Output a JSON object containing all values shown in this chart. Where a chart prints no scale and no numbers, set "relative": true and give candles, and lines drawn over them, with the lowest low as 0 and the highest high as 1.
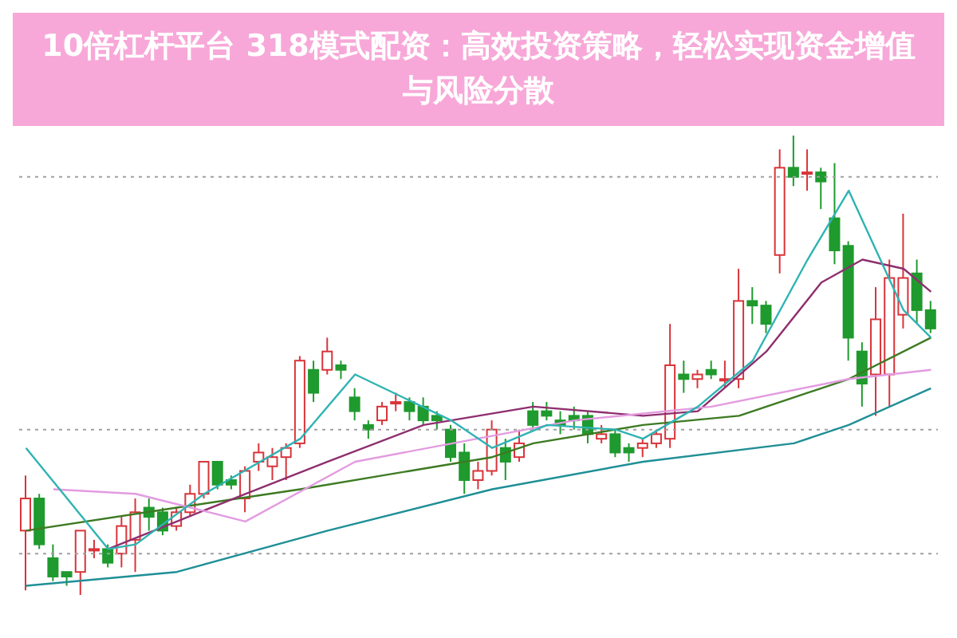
{
  "chart_data": {
    "type": "candlestick",
    "title": "10倍杠杆平台 318模式配资：高效投资策略，轻松实现资金增值与风险分散",
    "relative": true,
    "tick_labels": false,
    "categories": [
      null,
      null,
      null,
      null,
      null,
      null,
      null,
      null,
      null,
      null,
      null,
      null,
      null,
      null,
      null,
      null,
      null,
      null,
      null,
      null,
      null,
      null,
      null,
      null,
      null,
      null,
      null,
      null,
      null,
      null,
      null,
      null,
      null,
      null,
      null,
      null,
      null,
      null,
      null,
      null,
      null,
      null,
      null,
      null,
      null,
      null,
      null,
      null,
      null,
      null,
      null,
      null,
      null,
      null,
      null,
      null,
      null,
      null,
      null,
      null,
      null,
      null,
      null,
      null,
      null,
      null,
      null
    ],
    "ohlc": [
      [
        0.14,
        0.26,
        0.01,
        0.21
      ],
      [
        0.21,
        0.22,
        0.1,
        0.11
      ],
      [
        0.08,
        0.11,
        0.03,
        0.04
      ],
      [
        0.05,
        0.05,
        0.02,
        0.04
      ],
      [
        0.05,
        0.14,
        0.0,
        0.14
      ],
      [
        0.1,
        0.12,
        0.08,
        0.1
      ],
      [
        0.1,
        0.11,
        0.06,
        0.07
      ],
      [
        0.09,
        0.17,
        0.06,
        0.15
      ],
      [
        0.12,
        0.21,
        0.05,
        0.18
      ],
      [
        0.19,
        0.21,
        0.14,
        0.17
      ],
      [
        0.18,
        0.19,
        0.13,
        0.14
      ],
      [
        0.15,
        0.19,
        0.14,
        0.18
      ],
      [
        0.18,
        0.24,
        0.17,
        0.22
      ],
      [
        0.22,
        0.29,
        0.21,
        0.29
      ],
      [
        0.29,
        0.29,
        0.23,
        0.24
      ],
      [
        0.25,
        0.26,
        0.23,
        0.24
      ],
      [
        0.21,
        0.28,
        0.18,
        0.27
      ],
      [
        0.29,
        0.33,
        0.27,
        0.31
      ],
      [
        0.28,
        0.32,
        0.25,
        0.3
      ],
      [
        0.3,
        0.33,
        0.25,
        0.32
      ],
      [
        0.33,
        0.52,
        0.32,
        0.51
      ],
      [
        0.49,
        0.51,
        0.42,
        0.44
      ],
      [
        0.49,
        0.56,
        0.48,
        0.53
      ],
      [
        0.5,
        0.51,
        0.47,
        0.49
      ],
      [
        0.43,
        0.45,
        0.38,
        0.4
      ],
      [
        0.37,
        0.38,
        0.34,
        0.36
      ],
      [
        0.38,
        0.42,
        0.37,
        0.41
      ],
      [
        0.42,
        0.44,
        0.4,
        0.42
      ],
      [
        0.42,
        0.43,
        0.38,
        0.4
      ],
      [
        0.41,
        0.43,
        0.37,
        0.38
      ],
      [
        0.39,
        0.4,
        0.36,
        0.38
      ],
      [
        0.36,
        0.37,
        0.29,
        0.3
      ],
      [
        0.31,
        0.33,
        0.22,
        0.25
      ],
      [
        0.25,
        0.29,
        0.23,
        0.27
      ],
      [
        0.27,
        0.38,
        0.26,
        0.36
      ],
      [
        0.32,
        0.34,
        0.25,
        0.29
      ],
      [
        0.3,
        0.36,
        0.29,
        0.33
      ],
      [
        0.4,
        0.42,
        0.36,
        0.37
      ],
      [
        0.4,
        0.42,
        0.38,
        0.39
      ],
      [
        0.38,
        0.4,
        0.35,
        0.37
      ],
      [
        0.39,
        0.41,
        0.36,
        0.38
      ],
      [
        0.39,
        0.4,
        0.33,
        0.35
      ],
      [
        0.34,
        0.37,
        0.33,
        0.35
      ],
      [
        0.35,
        0.36,
        0.3,
        0.31
      ],
      [
        0.32,
        0.33,
        0.29,
        0.31
      ],
      [
        0.32,
        0.34,
        0.3,
        0.33
      ],
      [
        0.33,
        0.36,
        0.32,
        0.35
      ],
      [
        0.34,
        0.59,
        0.32,
        0.5
      ],
      [
        0.48,
        0.51,
        0.44,
        0.47
      ],
      [
        0.47,
        0.49,
        0.45,
        0.48
      ],
      [
        0.49,
        0.51,
        0.47,
        0.48
      ],
      [
        0.47,
        0.51,
        0.45,
        0.47
      ],
      [
        0.47,
        0.71,
        0.45,
        0.64
      ],
      [
        0.64,
        0.67,
        0.59,
        0.63
      ],
      [
        0.63,
        0.64,
        0.57,
        0.59
      ],
      [
        0.74,
        0.97,
        0.7,
        0.93
      ],
      [
        0.93,
        1.0,
        0.89,
        0.91
      ],
      [
        0.92,
        0.97,
        0.88,
        0.92
      ],
      [
        0.92,
        0.93,
        0.84,
        0.9
      ],
      [
        0.82,
        0.94,
        0.72,
        0.75
      ],
      [
        0.76,
        0.77,
        0.51,
        0.56
      ],
      [
        0.53,
        0.55,
        0.41,
        0.46
      ],
      [
        0.48,
        0.67,
        0.39,
        0.6
      ],
      [
        0.48,
        0.73,
        0.41,
        0.69
      ],
      [
        0.61,
        0.83,
        0.58,
        0.69
      ],
      [
        0.7,
        0.73,
        0.59,
        0.62
      ],
      [
        0.62,
        0.64,
        0.57,
        0.58
      ]
    ],
    "colors": [
      "#d8343a",
      "#1f9a2e",
      "#1f9a2e",
      "#1f9a2e",
      "#d8343a",
      "#d8343a",
      "#1f9a2e",
      "#d8343a",
      "#d8343a",
      "#1f9a2e",
      "#1f9a2e",
      "#d8343a",
      "#d8343a",
      "#d8343a",
      "#1f9a2e",
      "#1f9a2e",
      "#d8343a",
      "#d8343a",
      "#d8343a",
      "#d8343a",
      "#d8343a",
      "#1f9a2e",
      "#d8343a",
      "#1f9a2e",
      "#1f9a2e",
      "#1f9a2e",
      "#d8343a",
      "#d8343a",
      "#1f9a2e",
      "#1f9a2e",
      "#1f9a2e",
      "#1f9a2e",
      "#1f9a2e",
      "#d8343a",
      "#d8343a",
      "#1f9a2e",
      "#d8343a",
      "#1f9a2e",
      "#1f9a2e",
      "#1f9a2e",
      "#1f9a2e",
      "#1f9a2e",
      "#d8343a",
      "#1f9a2e",
      "#1f9a2e",
      "#d8343a",
      "#d8343a",
      "#d8343a",
      "#1f9a2e",
      "#d8343a",
      "#1f9a2e",
      "#d8343a",
      "#d8343a",
      "#1f9a2e",
      "#1f9a2e",
      "#d8343a",
      "#1f9a2e",
      "#d8343a",
      "#1f9a2e",
      "#1f9a2e",
      "#1f9a2e",
      "#1f9a2e",
      "#d8343a",
      "#d8343a",
      "#d8343a",
      "#1f9a2e",
      "#1f9a2e"
    ],
    "series": [
      {
        "type": "line",
        "color": "#1f8f96",
        "values": [
          0.02,
          null,
          null,
          null,
          null,
          null,
          null,
          null,
          null,
          null,
          null,
          0.05,
          null,
          null,
          null,
          null,
          null,
          null,
          null,
          null,
          null,
          null,
          0.14,
          null,
          null,
          null,
          null,
          null,
          null,
          null,
          null,
          null,
          null,
          null,
          0.23,
          null,
          null,
          null,
          null,
          null,
          null,
          null,
          null,
          null,
          null,
          0.29,
          null,
          null,
          null,
          null,
          null,
          null,
          null,
          null,
          null,
          null,
          0.33,
          null,
          null,
          null,
          0.37,
          null,
          null,
          null,
          null,
          null,
          0.45
        ]
      },
      {
        "type": "line",
        "color": "#3d7a22",
        "values": [
          0.14,
          null,
          null,
          null,
          null,
          null,
          null,
          null,
          null,
          null,
          null,
          0.19,
          null,
          null,
          null,
          null,
          null,
          null,
          null,
          null,
          0.23,
          null,
          null,
          null,
          null,
          null,
          null,
          null,
          0.27,
          null,
          null,
          null,
          null,
          null,
          0.3,
          null,
          null,
          0.33,
          null,
          null,
          null,
          null,
          null,
          null,
          null,
          0.37,
          null,
          null,
          null,
          null,
          null,
          null,
          0.39,
          null,
          null,
          null,
          null,
          null,
          null,
          null,
          0.47,
          null,
          null,
          null,
          null,
          null,
          0.56
        ]
      },
      {
        "type": "line",
        "color": "#8e2f6e",
        "values": [
          null,
          null,
          null,
          null,
          null,
          null,
          0.1,
          null,
          null,
          null,
          null,
          0.16,
          null,
          null,
          null,
          null,
          0.22,
          null,
          null,
          null,
          null,
          null,
          0.29,
          null,
          null,
          null,
          null,
          null,
          null,
          0.37,
          null,
          null,
          null,
          null,
          null,
          null,
          null,
          0.41,
          null,
          null,
          null,
          null,
          null,
          null,
          null,
          0.39,
          null,
          null,
          null,
          0.4,
          null,
          null,
          null,
          null,
          0.53,
          null,
          null,
          null,
          0.68,
          null,
          null,
          0.73,
          null,
          null,
          0.71,
          null,
          0.66
        ]
      },
      {
        "type": "line",
        "color": "#e39be0",
        "values": [
          null,
          null,
          0.23,
          null,
          null,
          null,
          null,
          null,
          0.22,
          null,
          null,
          null,
          null,
          null,
          null,
          null,
          0.16,
          null,
          null,
          null,
          null,
          null,
          null,
          null,
          0.29,
          null,
          null,
          null,
          null,
          null,
          null,
          null,
          null,
          null,
          null,
          null,
          null,
          null,
          null,
          null,
          0.38,
          null,
          null,
          null,
          null,
          null,
          null,
          null,
          null,
          null,
          0.41,
          null,
          null,
          null,
          null,
          null,
          null,
          null,
          null,
          null,
          0.47,
          null,
          null,
          null,
          null,
          null,
          0.49
        ]
      },
      {
        "type": "line",
        "color": "#2fb3b3",
        "values": [
          0.32,
          null,
          null,
          0.21,
          null,
          null,
          0.1,
          null,
          0.11,
          null,
          null,
          null,
          null,
          0.22,
          null,
          null,
          null,
          null,
          null,
          null,
          0.34,
          null,
          null,
          null,
          0.48,
          null,
          null,
          null,
          null,
          null,
          null,
          0.38,
          null,
          null,
          0.32,
          null,
          null,
          null,
          0.37,
          null,
          null,
          null,
          null,
          0.36,
          null,
          0.34,
          null,
          null,
          null,
          0.41,
          null,
          null,
          null,
          0.51,
          null,
          null,
          null,
          0.73,
          null,
          null,
          0.88,
          null,
          null,
          null,
          0.62,
          null,
          0.56
        ]
      }
    ],
    "ref_lines": [
      {
        "axis": "y",
        "value": 0.91,
        "color": "#a0a0a0",
        "line_style": "dotted"
      },
      {
        "axis": "y",
        "value": 0.36,
        "color": "#a0a0a0",
        "line_style": "dotted"
      },
      {
        "axis": "y",
        "value": 0.09,
        "color": "#a0a0a0",
        "line_style": "dotted"
      }
    ]
  }
}
